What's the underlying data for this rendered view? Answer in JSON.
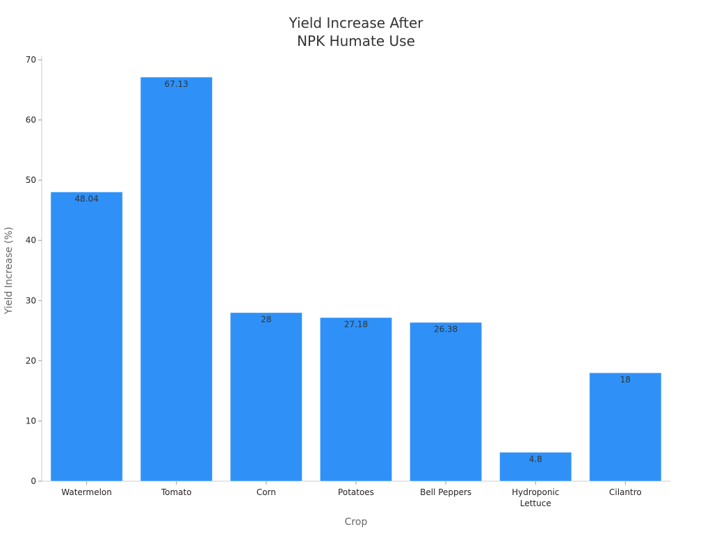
{
  "chart_data": {
    "type": "bar",
    "title_lines": [
      "Yield Increase After",
      "NPK Humate Use"
    ],
    "xlabel": "Crop",
    "ylabel": "Yield Increase (%)",
    "categories": [
      [
        "Watermelon"
      ],
      [
        "Tomato"
      ],
      [
        "Corn"
      ],
      [
        "Potatoes"
      ],
      [
        "Bell Peppers"
      ],
      [
        "Hydroponic",
        "Lettuce"
      ],
      [
        "Cilantro"
      ]
    ],
    "values": [
      48.04,
      67.13,
      28,
      27.18,
      26.38,
      4.8,
      18
    ],
    "value_labels": [
      "48.04",
      "67.13",
      "28",
      "27.18",
      "26.38",
      "4.8",
      "18"
    ],
    "ylim": [
      0,
      70
    ],
    "yticks": [
      0,
      10,
      20,
      30,
      40,
      50,
      60,
      70
    ],
    "bar_color": "#2f91f7",
    "grid": false,
    "legend": "none"
  }
}
